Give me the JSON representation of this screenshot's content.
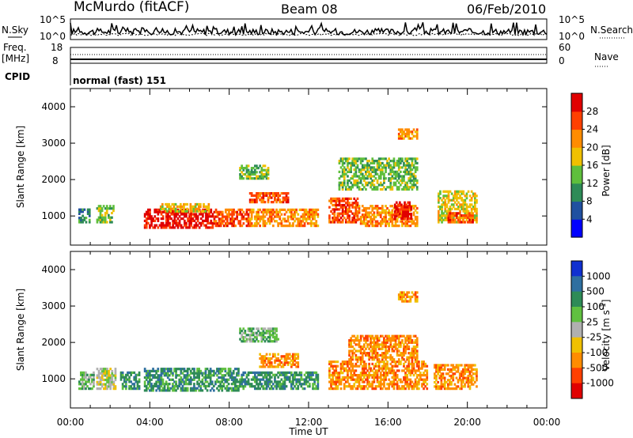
{
  "header": {
    "station": "McMurdo (fitACF)",
    "beam": "Beam 08",
    "date": "06/Feb/2010"
  },
  "noise_panel": {
    "left_label": "N.Sky",
    "right_label": "N.Search",
    "left_ticks": [
      "10^5",
      "10^0"
    ],
    "right_ticks": [
      "10^5",
      "10^0"
    ]
  },
  "freq_panel": {
    "left_label": "Freq.",
    "left_unit": "[MHz]",
    "right_label": "Nave",
    "left_ticks": [
      "18",
      "8"
    ],
    "right_ticks": [
      "60",
      "0"
    ]
  },
  "cpid_panel": {
    "label": "CPID",
    "value": "normal (fast) 151"
  },
  "x_axis": {
    "label": "Time UT",
    "ticks": [
      "00:00",
      "04:00",
      "08:00",
      "12:00",
      "16:00",
      "20:00",
      "00:00"
    ]
  },
  "colors": {
    "power": [
      "#0000ff",
      "#2050a0",
      "#2e8b57",
      "#5fbf3c",
      "#f0c000",
      "#ff8c00",
      "#ff4000",
      "#e00000"
    ],
    "velocity": [
      "#1030d0",
      "#2f6fa0",
      "#2e8b57",
      "#60c040",
      "#b0b0b0",
      "#f0c000",
      "#ff8c00",
      "#ff4000",
      "#e00000"
    ]
  },
  "chart_data": [
    {
      "type": "line",
      "name": "noise",
      "x": [
        0,
        24
      ],
      "xlim": [
        0,
        24
      ],
      "ylim": [
        0,
        5
      ],
      "series": []
    },
    {
      "type": "line",
      "name": "frequency",
      "x": [
        0,
        24
      ],
      "xlim": [
        0,
        24
      ],
      "ylim": [
        8,
        18
      ],
      "series": []
    },
    {
      "type": "heatmap",
      "ylabel": "Slant Range [km]",
      "xlabel": "",
      "xlim": [
        0,
        24
      ],
      "ylim": [
        200,
        4500
      ],
      "yticks": [
        "1000",
        "2000",
        "3000",
        "4000"
      ],
      "colorbar": {
        "label": "Power [dB]",
        "ticks": [
          "4",
          "8",
          "12",
          "16",
          "20",
          "24",
          "28"
        ]
      },
      "regions": [
        {
          "t0": 0.4,
          "t1": 1.0,
          "r0": 800,
          "r1": 1200,
          "level": 2
        },
        {
          "t0": 1.3,
          "t1": 2.2,
          "r0": 800,
          "r1": 1300,
          "level": 3
        },
        {
          "t0": 3.7,
          "t1": 7.2,
          "r0": 650,
          "r1": 1200,
          "level": 7
        },
        {
          "t0": 4.5,
          "t1": 7.0,
          "r0": 1100,
          "r1": 1350,
          "level": 4
        },
        {
          "t0": 7.2,
          "t1": 9.0,
          "r0": 700,
          "r1": 1200,
          "level": 6
        },
        {
          "t0": 9.0,
          "t1": 11.0,
          "r0": 1350,
          "r1": 1650,
          "level": 6
        },
        {
          "t0": 9.0,
          "t1": 12.5,
          "r0": 700,
          "r1": 1200,
          "level": 5
        },
        {
          "t0": 13.0,
          "t1": 14.5,
          "r0": 800,
          "r1": 1500,
          "level": 6
        },
        {
          "t0": 14.5,
          "t1": 17.5,
          "r0": 700,
          "r1": 1300,
          "level": 5
        },
        {
          "t0": 16.3,
          "t1": 17.2,
          "r0": 900,
          "r1": 1400,
          "level": 7
        },
        {
          "t0": 8.5,
          "t1": 10.0,
          "r0": 2000,
          "r1": 2400,
          "level": 3
        },
        {
          "t0": 13.5,
          "t1": 17.5,
          "r0": 1700,
          "r1": 2600,
          "level": 3
        },
        {
          "t0": 16.5,
          "t1": 17.5,
          "r0": 3100,
          "r1": 3400,
          "level": 5
        },
        {
          "t0": 18.5,
          "t1": 20.5,
          "r0": 800,
          "r1": 1700,
          "level": 4
        },
        {
          "t0": 19.0,
          "t1": 20.3,
          "r0": 800,
          "r1": 1100,
          "level": 6
        }
      ]
    },
    {
      "type": "heatmap",
      "ylabel": "Slant Range [km]",
      "xlabel": "Time UT",
      "xlim": [
        0,
        24
      ],
      "ylim": [
        200,
        4500
      ],
      "yticks": [
        "1000",
        "2000",
        "3000",
        "4000"
      ],
      "colorbar": {
        "label": "Velocity [m s",
        "label_sup": "-1",
        "label_end": "]",
        "ticks": [
          "1000",
          "500",
          "100",
          "25",
          "-25",
          "-100",
          "-500",
          "-1000"
        ]
      },
      "regions": [
        {
          "t0": 0.4,
          "t1": 1.2,
          "r0": 700,
          "r1": 1200,
          "level": 3
        },
        {
          "t0": 1.3,
          "t1": 2.3,
          "r0": 700,
          "r1": 1300,
          "level": 4
        },
        {
          "t0": 2.5,
          "t1": 3.5,
          "r0": 700,
          "r1": 1200,
          "level": 2
        },
        {
          "t0": 3.7,
          "t1": 8.5,
          "r0": 650,
          "r1": 1300,
          "level": 2
        },
        {
          "t0": 8.5,
          "t1": 12.5,
          "r0": 700,
          "r1": 1200,
          "level": 2
        },
        {
          "t0": 9.5,
          "t1": 11.5,
          "r0": 1300,
          "r1": 1700,
          "level": 6
        },
        {
          "t0": 13.0,
          "t1": 18.0,
          "r0": 700,
          "r1": 1500,
          "level": 6
        },
        {
          "t0": 14.0,
          "t1": 17.5,
          "r0": 1500,
          "r1": 2200,
          "level": 6
        },
        {
          "t0": 16.5,
          "t1": 17.5,
          "r0": 3100,
          "r1": 3400,
          "level": 6
        },
        {
          "t0": 18.3,
          "t1": 20.5,
          "r0": 700,
          "r1": 1400,
          "level": 6
        },
        {
          "t0": 8.5,
          "t1": 10.5,
          "r0": 2000,
          "r1": 2400,
          "level": 3
        }
      ]
    }
  ]
}
